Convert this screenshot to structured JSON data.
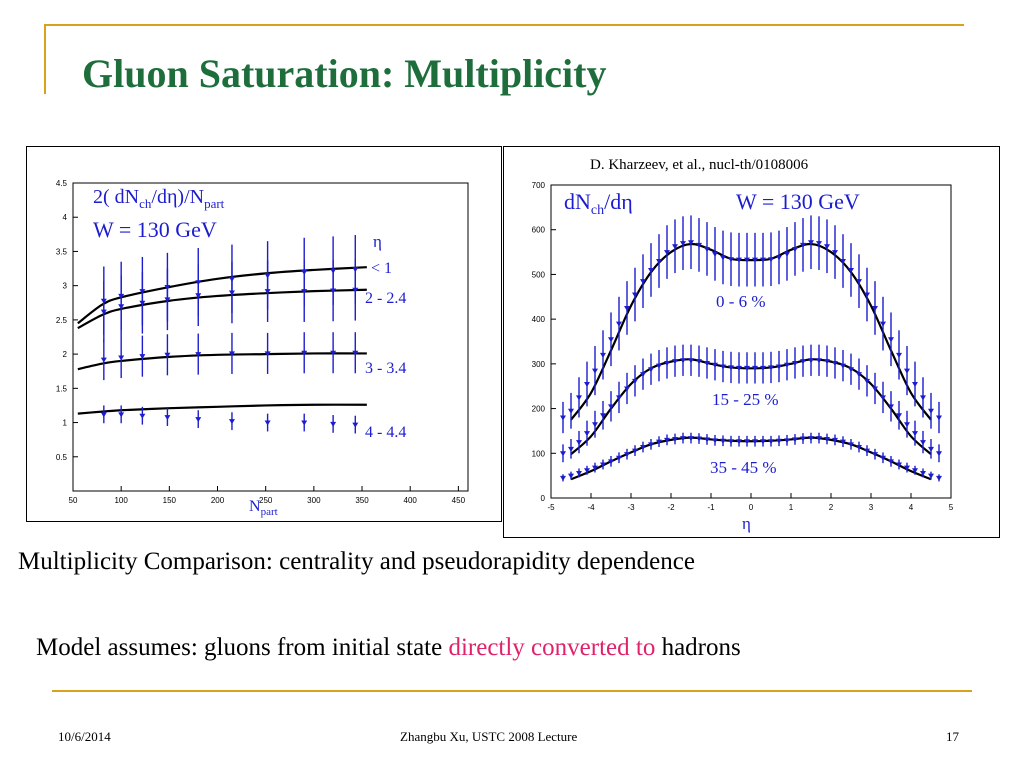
{
  "slide": {
    "title": "Gluon Saturation: Multiplicity",
    "citation": "D. Kharzeev, et al., nucl-th/0108006",
    "caption": "Multiplicity Comparison: centrality and pseudorapidity dependence",
    "model_prefix": "Model assumes: gluons from initial state ",
    "model_highlight": "directly converted to",
    "model_suffix": " hadrons",
    "footer_date": "10/6/2014",
    "footer_center": "Zhangbu Xu, USTC 2008 Lecture",
    "footer_page": "17",
    "colors": {
      "title": "#1e6e3c",
      "accent_line": "#d9a21c",
      "highlight": "#e0226b",
      "data_blue": "#1d1dd0"
    }
  },
  "chart_data": [
    {
      "type": "scatter",
      "panel_title_line1": "2( dN_ch/dη)/N_part",
      "panel_title_line2": "W = 130 GeV",
      "xlabel": "N_part",
      "xlim": [
        50,
        460
      ],
      "ylim": [
        0,
        4.5
      ],
      "x_ticks": [
        "50",
        "100",
        "150",
        "200",
        "250",
        "300",
        "350",
        "400",
        "450"
      ],
      "y_ticks": [
        "0.5",
        "1",
        "1.5",
        "2",
        "2.5",
        "3",
        "3.5",
        "4",
        "4.5"
      ],
      "legend_header": [
        "η",
        "< 1"
      ],
      "series": [
        {
          "name": "< 1",
          "x": [
            82,
            100,
            122,
            148,
            180,
            215,
            252,
            290,
            320,
            343
          ],
          "y": [
            2.78,
            2.85,
            2.92,
            2.98,
            3.05,
            3.1,
            3.15,
            3.2,
            3.22,
            3.24
          ],
          "err": [
            0.5,
            0.5,
            0.5,
            0.5,
            0.5,
            0.5,
            0.5,
            0.5,
            0.5,
            0.5
          ],
          "model": [
            [
              55,
              2.45
            ],
            [
              80,
              2.72
            ],
            [
              100,
              2.83
            ],
            [
              150,
              2.98
            ],
            [
              200,
              3.1
            ],
            [
              250,
              3.18
            ],
            [
              300,
              3.23
            ],
            [
              355,
              3.27
            ]
          ]
        },
        {
          "name": "2 - 2.4",
          "x": [
            82,
            100,
            122,
            148,
            180,
            215,
            252,
            290,
            320,
            343
          ],
          "y": [
            2.62,
            2.7,
            2.75,
            2.8,
            2.86,
            2.9,
            2.92,
            2.92,
            2.93,
            2.94
          ],
          "err": [
            0.45,
            0.45,
            0.45,
            0.45,
            0.45,
            0.45,
            0.45,
            0.45,
            0.45,
            0.45
          ],
          "model": [
            [
              55,
              2.38
            ],
            [
              80,
              2.57
            ],
            [
              100,
              2.66
            ],
            [
              150,
              2.78
            ],
            [
              200,
              2.85
            ],
            [
              250,
              2.89
            ],
            [
              300,
              2.92
            ],
            [
              355,
              2.94
            ]
          ]
        },
        {
          "name": "3 - 3.4",
          "x": [
            82,
            100,
            122,
            148,
            180,
            215,
            252,
            290,
            320,
            343
          ],
          "y": [
            1.92,
            1.95,
            1.97,
            1.99,
            2.0,
            2.01,
            2.01,
            2.02,
            2.02,
            2.02
          ],
          "err": [
            0.3,
            0.3,
            0.3,
            0.3,
            0.3,
            0.3,
            0.3,
            0.3,
            0.3,
            0.3
          ],
          "model": [
            [
              55,
              1.78
            ],
            [
              80,
              1.86
            ],
            [
              100,
              1.9
            ],
            [
              150,
              1.96
            ],
            [
              200,
              1.99
            ],
            [
              250,
              2.0
            ],
            [
              300,
              2.01
            ],
            [
              355,
              2.01
            ]
          ]
        },
        {
          "name": "4 - 4.4",
          "x": [
            82,
            100,
            122,
            148,
            180,
            215,
            252,
            290,
            320,
            343
          ],
          "y": [
            1.12,
            1.12,
            1.1,
            1.08,
            1.05,
            1.02,
            1.0,
            1.0,
            0.98,
            0.97
          ],
          "err": [
            0.13,
            0.13,
            0.13,
            0.13,
            0.13,
            0.13,
            0.13,
            0.13,
            0.13,
            0.13
          ],
          "model": [
            [
              55,
              1.13
            ],
            [
              80,
              1.16
            ],
            [
              100,
              1.18
            ],
            [
              150,
              1.21
            ],
            [
              200,
              1.23
            ],
            [
              250,
              1.25
            ],
            [
              300,
              1.26
            ],
            [
              355,
              1.26
            ]
          ]
        }
      ]
    },
    {
      "type": "scatter",
      "panel_title": "dN_ch/dη   W = 130 GeV",
      "xlabel": "η",
      "xlim": [
        -5,
        5
      ],
      "ylim": [
        0,
        700
      ],
      "x_ticks": [
        "-5",
        "-4",
        "-3",
        "-2",
        "-1",
        "0",
        "1",
        "2",
        "3",
        "4",
        "5"
      ],
      "y_ticks": [
        "0",
        "100",
        "200",
        "300",
        "400",
        "500",
        "600",
        "700"
      ],
      "series": [
        {
          "name": "0 - 6 %",
          "x": [
            -4.7,
            -4.5,
            -4.3,
            -4.1,
            -3.9,
            -3.7,
            -3.5,
            -3.3,
            -3.1,
            -2.9,
            -2.7,
            -2.5,
            -2.3,
            -2.1,
            -1.9,
            -1.7,
            -1.5,
            -1.3,
            -1.1,
            -0.9,
            -0.7,
            -0.5,
            -0.3,
            -0.1,
            0.1,
            0.3,
            0.5,
            0.7,
            0.9,
            1.1,
            1.3,
            1.5,
            1.7,
            1.9,
            2.1,
            2.3,
            2.5,
            2.7,
            2.9,
            3.1,
            3.3,
            3.5,
            3.7,
            3.9,
            4.1,
            4.3,
            4.5,
            4.7
          ],
          "y": [
            180,
            195,
            225,
            255,
            285,
            320,
            355,
            390,
            425,
            455,
            485,
            510,
            530,
            550,
            563,
            570,
            572,
            566,
            557,
            546,
            538,
            534,
            533,
            533,
            533,
            533,
            534,
            538,
            546,
            557,
            566,
            572,
            570,
            563,
            550,
            530,
            510,
            485,
            455,
            425,
            390,
            355,
            320,
            285,
            255,
            225,
            195,
            180
          ],
          "err": [
            35,
            40,
            45,
            50,
            55,
            55,
            60,
            60,
            60,
            60,
            60,
            60,
            60,
            60,
            60,
            60,
            60,
            60,
            60,
            60,
            60,
            60,
            60,
            60,
            60,
            60,
            60,
            60,
            60,
            60,
            60,
            60,
            60,
            60,
            60,
            60,
            60,
            60,
            60,
            60,
            60,
            60,
            55,
            55,
            50,
            45,
            40,
            35
          ],
          "model": [
            [
              -4.5,
              175
            ],
            [
              -4.0,
              235
            ],
            [
              -3.5,
              330
            ],
            [
              -3.0,
              430
            ],
            [
              -2.5,
              505
            ],
            [
              -2.0,
              550
            ],
            [
              -1.5,
              568
            ],
            [
              -1.0,
              555
            ],
            [
              -0.5,
              535
            ],
            [
              0,
              532
            ],
            [
              0.5,
              535
            ],
            [
              1.0,
              555
            ],
            [
              1.5,
              568
            ],
            [
              2.0,
              550
            ],
            [
              2.5,
              505
            ],
            [
              3.0,
              430
            ],
            [
              3.5,
              330
            ],
            [
              4.0,
              235
            ],
            [
              4.5,
              175
            ]
          ]
        },
        {
          "name": "15 - 25 %",
          "x": [
            -4.7,
            -4.5,
            -4.3,
            -4.1,
            -3.9,
            -3.7,
            -3.5,
            -3.3,
            -3.1,
            -2.9,
            -2.7,
            -2.5,
            -2.3,
            -2.1,
            -1.9,
            -1.7,
            -1.5,
            -1.3,
            -1.1,
            -0.9,
            -0.7,
            -0.5,
            -0.3,
            -0.1,
            0.1,
            0.3,
            0.5,
            0.7,
            0.9,
            1.1,
            1.3,
            1.5,
            1.7,
            1.9,
            2.1,
            2.3,
            2.5,
            2.7,
            2.9,
            3.1,
            3.3,
            3.5,
            3.7,
            3.9,
            4.1,
            4.3,
            4.5,
            4.7
          ],
          "y": [
            100,
            110,
            125,
            145,
            165,
            185,
            205,
            225,
            245,
            262,
            277,
            288,
            296,
            302,
            306,
            308,
            308,
            306,
            302,
            298,
            294,
            292,
            291,
            291,
            291,
            291,
            292,
            294,
            298,
            302,
            306,
            308,
            308,
            306,
            302,
            296,
            288,
            277,
            262,
            245,
            225,
            205,
            185,
            165,
            145,
            125,
            110,
            100
          ],
          "err": [
            20,
            22,
            25,
            28,
            30,
            32,
            34,
            35,
            35,
            35,
            35,
            35,
            35,
            35,
            35,
            35,
            35,
            35,
            35,
            35,
            35,
            35,
            35,
            35,
            35,
            35,
            35,
            35,
            35,
            35,
            35,
            35,
            35,
            35,
            35,
            35,
            35,
            35,
            35,
            35,
            35,
            34,
            32,
            30,
            28,
            25,
            22,
            20
          ],
          "model": [
            [
              -4.5,
              98
            ],
            [
              -4.0,
              138
            ],
            [
              -3.5,
              200
            ],
            [
              -3.0,
              255
            ],
            [
              -2.5,
              290
            ],
            [
              -2.0,
              305
            ],
            [
              -1.5,
              310
            ],
            [
              -1.0,
              300
            ],
            [
              -0.5,
              292
            ],
            [
              0,
              290
            ],
            [
              0.5,
              292
            ],
            [
              1.0,
              300
            ],
            [
              1.5,
              310
            ],
            [
              2.0,
              305
            ],
            [
              2.5,
              290
            ],
            [
              3.0,
              255
            ],
            [
              3.5,
              200
            ],
            [
              4.0,
              138
            ],
            [
              4.5,
              98
            ]
          ]
        },
        {
          "name": "35 - 45 %",
          "x": [
            -4.7,
            -4.5,
            -4.3,
            -4.1,
            -3.9,
            -3.7,
            -3.5,
            -3.3,
            -3.1,
            -2.9,
            -2.7,
            -2.5,
            -2.3,
            -2.1,
            -1.9,
            -1.7,
            -1.5,
            -1.3,
            -1.1,
            -0.9,
            -0.7,
            -0.5,
            -0.3,
            -0.1,
            0.1,
            0.3,
            0.5,
            0.7,
            0.9,
            1.1,
            1.3,
            1.5,
            1.7,
            1.9,
            2.1,
            2.3,
            2.5,
            2.7,
            2.9,
            3.1,
            3.3,
            3.5,
            3.7,
            3.9,
            4.1,
            4.3,
            4.5,
            4.7
          ],
          "y": [
            45,
            50,
            56,
            62,
            68,
            75,
            82,
            90,
            98,
            106,
            114,
            120,
            126,
            130,
            132,
            134,
            134,
            133,
            131,
            129,
            128,
            127,
            127,
            127,
            127,
            127,
            127,
            128,
            129,
            131,
            133,
            134,
            134,
            132,
            130,
            126,
            120,
            114,
            106,
            98,
            90,
            82,
            75,
            68,
            62,
            56,
            50,
            45
          ],
          "err": [
            8,
            9,
            10,
            10,
            11,
            11,
            12,
            12,
            12,
            12,
            12,
            12,
            12,
            12,
            12,
            12,
            12,
            12,
            12,
            12,
            12,
            12,
            12,
            12,
            12,
            12,
            12,
            12,
            12,
            12,
            12,
            12,
            12,
            12,
            12,
            12,
            12,
            12,
            12,
            12,
            12,
            12,
            11,
            11,
            10,
            10,
            9,
            8
          ],
          "model": [
            [
              -4.5,
              42
            ],
            [
              -4.0,
              60
            ],
            [
              -3.5,
              82
            ],
            [
              -3.0,
              102
            ],
            [
              -2.5,
              120
            ],
            [
              -2.0,
              130
            ],
            [
              -1.5,
              135
            ],
            [
              -1.0,
              131
            ],
            [
              -0.5,
              128
            ],
            [
              0,
              127
            ],
            [
              0.5,
              128
            ],
            [
              1.0,
              131
            ],
            [
              1.5,
              135
            ],
            [
              2.0,
              130
            ],
            [
              2.5,
              120
            ],
            [
              3.0,
              102
            ],
            [
              3.5,
              82
            ],
            [
              4.0,
              60
            ],
            [
              4.5,
              42
            ]
          ]
        }
      ]
    }
  ]
}
